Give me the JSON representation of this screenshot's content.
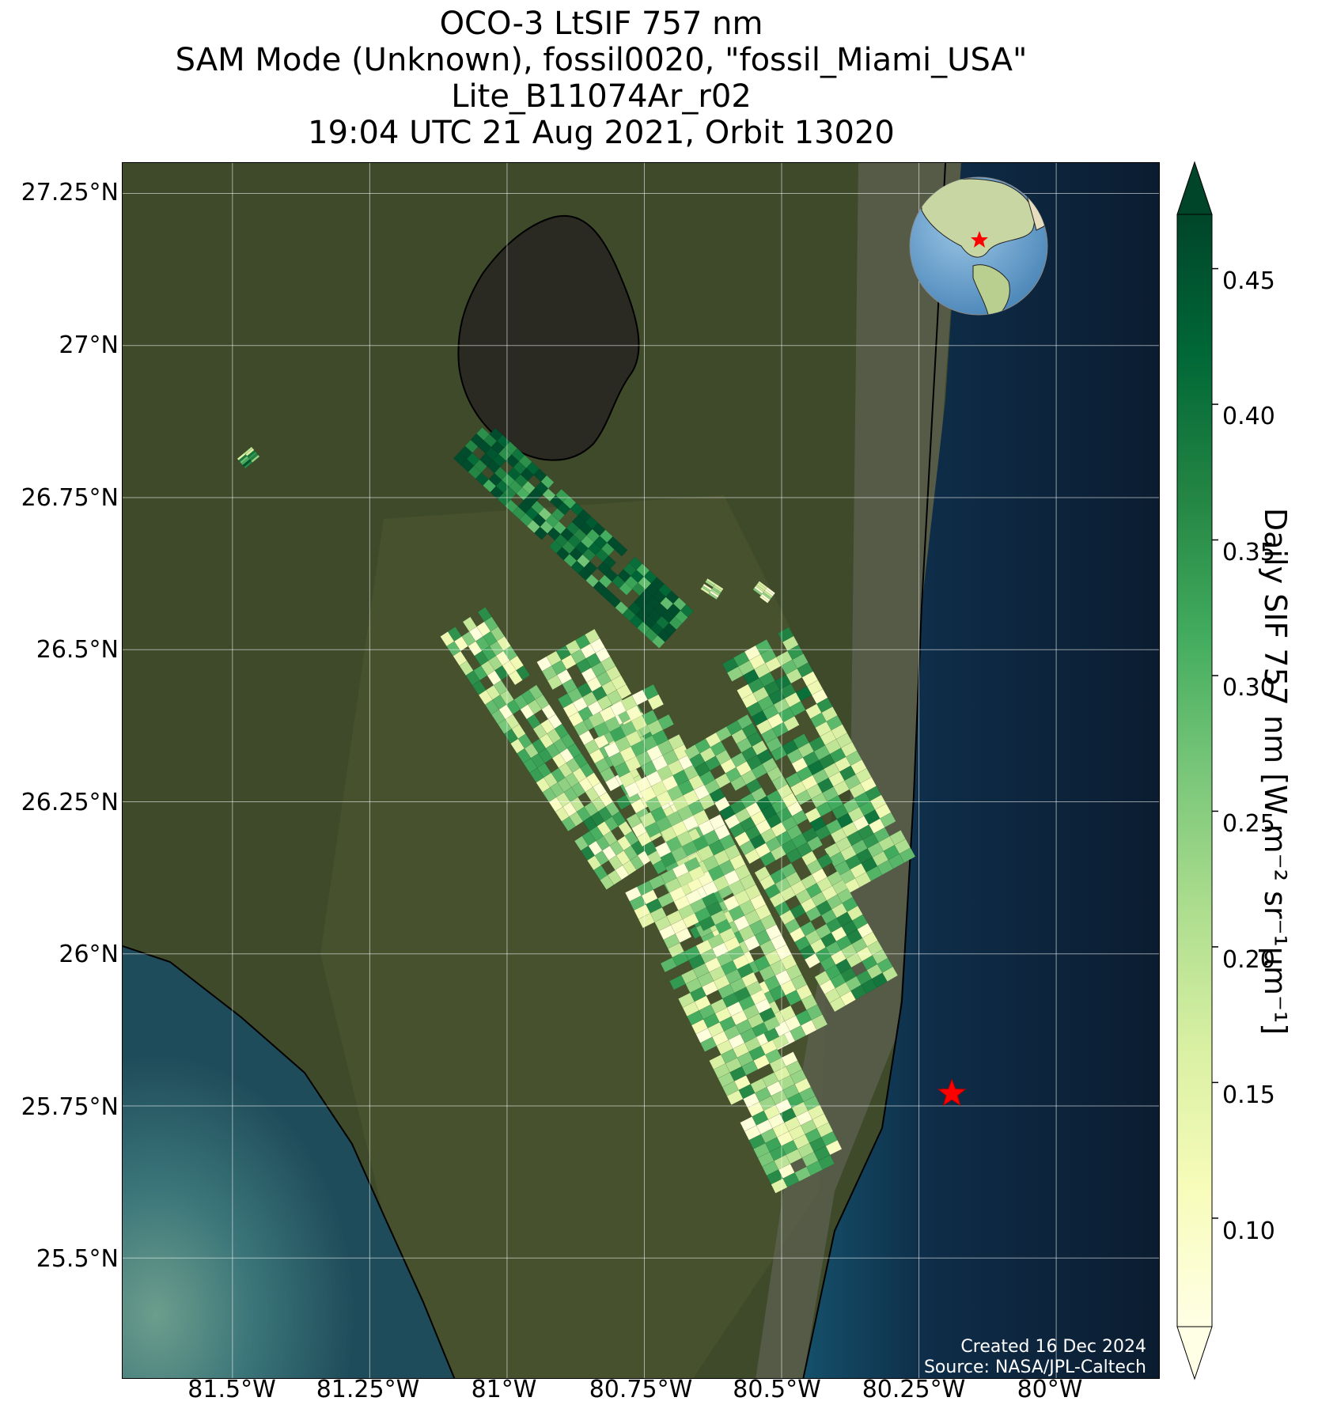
{
  "title": {
    "line1": "OCO-3 LtSIF 757 nm",
    "line2": "SAM Mode (Unknown), fossil0020, \"fossil_Miami_USA\"",
    "line3": "Lite_B11074Ar_r02",
    "line4": "19:04 UTC 21 Aug 2021, Orbit 13020"
  },
  "axes": {
    "lat_ticks": [
      "27.25°N",
      "27°N",
      "26.75°N",
      "26.5°N",
      "26.25°N",
      "26°N",
      "25.75°N",
      "25.5°N"
    ],
    "lon_ticks": [
      "81.5°W",
      "81.25°W",
      "81°W",
      "80.75°W",
      "80.5°W",
      "80.25°W",
      "80°W"
    ]
  },
  "map": {
    "extent": {
      "lon_min": -81.7,
      "lon_max": -79.81,
      "lat_min": 25.3,
      "lat_max": 27.3
    },
    "target": {
      "name": "fossil_Miami_USA",
      "lon": -80.19,
      "lat": 25.77
    },
    "credit_line1": "Created 16 Dec 2024",
    "credit_line2": "Source: NASA/JPL-Caltech",
    "colors": {
      "land": "#3e4a2a",
      "lake": "#2b2a22",
      "ocean": "#0d2137",
      "gulf": "#2f6a6e",
      "target_star": "#ff0000"
    },
    "inset_globe": {
      "center_lon": -80.19,
      "center_lat": 25.77
    }
  },
  "colorbar": {
    "label": "Daily SIF 757 nm [W m⁻² sr⁻¹μm⁻¹]",
    "ticks": [
      "0.45",
      "0.40",
      "0.35",
      "0.30",
      "0.25",
      "0.20",
      "0.15",
      "0.10"
    ],
    "vmin": 0.06,
    "vmax": 0.47,
    "colormap": "YlGn",
    "extend": "both"
  }
}
